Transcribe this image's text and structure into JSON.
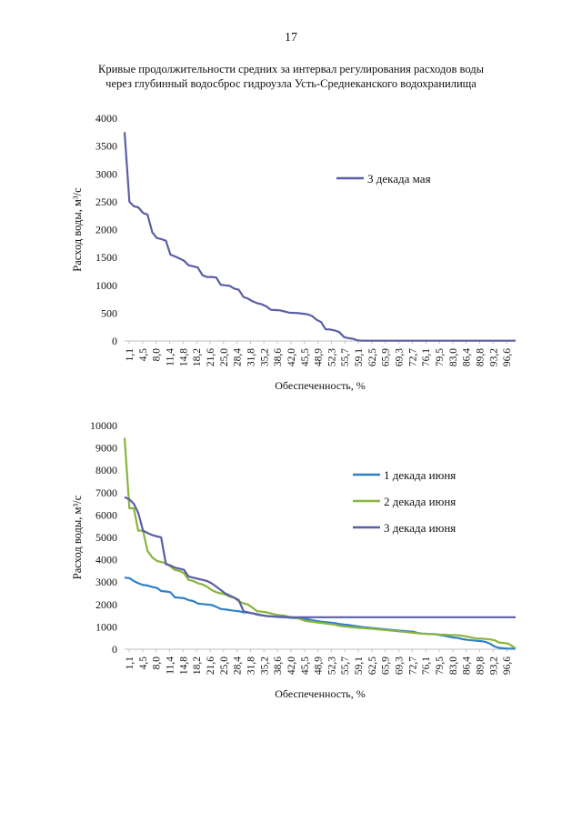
{
  "page": {
    "number": "17",
    "title_line1": "Кривые продолжительности средних за интервал регулирования расходов воды",
    "title_line2": "через глубинный водосброс гидроузла Усть-Среднеканского водохранилища"
  },
  "colors": {
    "may_d3": "#5b5ea6",
    "june_d1": "#2f7fc8",
    "june_d2": "#8ab43c",
    "june_d3": "#5b5ea6"
  },
  "chart_data": [
    {
      "type": "line",
      "title": "",
      "xlabel": "Обеспеченность, %",
      "ylabel": "Расход воды, м³/с",
      "ylim": [
        0,
        4000
      ],
      "yticks": [
        "0",
        "500",
        "1000",
        "1500",
        "2000",
        "2500",
        "3000",
        "3500",
        "4000"
      ],
      "xlim": [
        1.1,
        98.4
      ],
      "xtick_labels": [
        "1,1",
        "4,5",
        "8,0",
        "11,4",
        "14,8",
        "18,2",
        "21,6",
        "25,0",
        "28,4",
        "31,8",
        "35,2",
        "38,6",
        "42,0",
        "45,5",
        "48,9",
        "52,3",
        "55,7",
        "59,1",
        "62,5",
        "65,9",
        "69,3",
        "72,7",
        "76,1",
        "79,5",
        "83,0",
        "86,4",
        "89,8",
        "93,2",
        "96,6"
      ],
      "legend_position": "right",
      "series": [
        {
          "name": "3 декада мая",
          "color": "#5b5ea6",
          "x": [
            1.1,
            2.3,
            3.4,
            4.5,
            5.7,
            6.8,
            8.0,
            9.1,
            10.2,
            11.4,
            12.5,
            13.6,
            14.8,
            15.9,
            17.0,
            18.2,
            19.3,
            20.5,
            21.6,
            22.7,
            23.9,
            25.0,
            26.1,
            27.3,
            28.4,
            29.5,
            30.7,
            31.8,
            33.0,
            34.1,
            35.2,
            36.4,
            37.5,
            38.6,
            39.8,
            40.9,
            42.0,
            43.2,
            44.3,
            45.5,
            46.6,
            47.7,
            48.9,
            50.0,
            51.1,
            52.3,
            53.4,
            54.5,
            55.7,
            56.8,
            58.0,
            59.1,
            60.2,
            61.4,
            62.5,
            70.0,
            80.0,
            90.0,
            98.4
          ],
          "values": [
            3750,
            2500,
            2420,
            2400,
            2300,
            2270,
            1950,
            1850,
            1830,
            1800,
            1550,
            1520,
            1480,
            1440,
            1360,
            1340,
            1320,
            1180,
            1150,
            1150,
            1140,
            1010,
            1000,
            990,
            940,
            920,
            790,
            760,
            710,
            680,
            660,
            620,
            560,
            555,
            550,
            530,
            510,
            505,
            500,
            490,
            480,
            450,
            380,
            340,
            210,
            205,
            190,
            160,
            70,
            50,
            40,
            10,
            5,
            5,
            5,
            5,
            5,
            5,
            5
          ]
        }
      ]
    },
    {
      "type": "line",
      "title": "",
      "xlabel": "Обеспеченность, %",
      "ylabel": "Расход воды, м³/с",
      "ylim": [
        0,
        10000
      ],
      "yticks": [
        "0",
        "1000",
        "2000",
        "3000",
        "4000",
        "5000",
        "6000",
        "7000",
        "8000",
        "9000",
        "10000"
      ],
      "xlim": [
        1.1,
        98.4
      ],
      "xtick_labels": [
        "1,1",
        "4,5",
        "8,0",
        "11,4",
        "14,8",
        "18,2",
        "21,6",
        "25,0",
        "28,4",
        "31,8",
        "35,2",
        "38,6",
        "42,0",
        "45,5",
        "48,9",
        "52,3",
        "55,7",
        "59,1",
        "62,5",
        "65,9",
        "69,3",
        "72,7",
        "76,1",
        "79,5",
        "83,0",
        "86,4",
        "89,8",
        "93,2",
        "96,6"
      ],
      "legend_position": "right",
      "series": [
        {
          "name": "1 декада июня",
          "color": "#2f7fc8",
          "x": [
            1.1,
            2.3,
            3.4,
            4.5,
            5.7,
            6.8,
            8.0,
            9.1,
            10.2,
            11.4,
            12.5,
            13.6,
            14.8,
            15.9,
            17.0,
            18.2,
            19.3,
            20.5,
            21.6,
            22.7,
            23.9,
            25.0,
            26.1,
            27.3,
            28.4,
            29.5,
            30.7,
            31.8,
            33.0,
            34.1,
            35.2,
            36.4,
            37.5,
            38.6,
            39.8,
            40.9,
            42.0,
            43.2,
            44.3,
            45.5,
            46.6,
            47.7,
            48.9,
            50.0,
            51.1,
            52.3,
            53.4,
            54.5,
            55.7,
            56.8,
            58.0,
            59.1,
            60.2,
            61.4,
            62.5,
            63.6,
            64.8,
            65.9,
            67.0,
            68.2,
            69.3,
            70.5,
            71.6,
            72.7,
            73.9,
            75.0,
            76.1,
            77.3,
            78.4,
            79.5,
            80.7,
            81.8,
            83.0,
            84.1,
            85.2,
            86.4,
            87.5,
            88.6,
            89.8,
            90.9,
            92.0,
            93.2,
            94.3,
            95.5,
            96.6,
            97.7,
            98.4
          ],
          "values": [
            3200,
            3180,
            3050,
            2950,
            2870,
            2850,
            2780,
            2750,
            2600,
            2580,
            2550,
            2320,
            2300,
            2280,
            2200,
            2150,
            2050,
            2020,
            2000,
            1980,
            1900,
            1800,
            1780,
            1750,
            1720,
            1700,
            1650,
            1640,
            1600,
            1570,
            1520,
            1490,
            1470,
            1460,
            1440,
            1430,
            1420,
            1400,
            1380,
            1360,
            1340,
            1300,
            1260,
            1230,
            1210,
            1190,
            1170,
            1130,
            1100,
            1080,
            1050,
            1020,
            990,
            970,
            950,
            930,
            910,
            890,
            870,
            850,
            830,
            820,
            800,
            790,
            730,
            700,
            690,
            680,
            670,
            640,
            600,
            560,
            520,
            500,
            450,
            420,
            400,
            380,
            360,
            330,
            250,
            120,
            60,
            40,
            30,
            25,
            20
          ]
        },
        {
          "name": "2 декада июня",
          "color": "#8ab43c",
          "x": [
            1.1,
            2.3,
            3.4,
            4.5,
            5.7,
            6.8,
            8.0,
            9.1,
            10.2,
            11.4,
            12.5,
            13.6,
            14.8,
            15.9,
            17.0,
            18.2,
            19.3,
            20.5,
            21.6,
            22.7,
            23.9,
            25.0,
            26.1,
            27.3,
            28.4,
            29.5,
            30.7,
            31.8,
            33.0,
            34.1,
            35.2,
            36.4,
            37.5,
            38.6,
            39.8,
            40.9,
            42.0,
            43.2,
            44.3,
            45.5,
            46.6,
            47.7,
            48.9,
            50.0,
            51.1,
            52.3,
            53.4,
            54.5,
            55.7,
            56.8,
            58.0,
            59.1,
            60.2,
            61.4,
            62.5,
            63.6,
            64.8,
            65.9,
            67.0,
            68.2,
            69.3,
            70.5,
            71.6,
            72.7,
            73.9,
            75.0,
            76.1,
            77.3,
            78.4,
            79.5,
            80.7,
            81.8,
            83.0,
            84.1,
            85.2,
            86.4,
            87.5,
            88.6,
            89.8,
            90.9,
            92.0,
            93.2,
            94.3,
            95.5,
            96.6,
            97.7,
            98.4
          ],
          "values": [
            9450,
            6300,
            6300,
            5300,
            5300,
            4400,
            4100,
            3950,
            3900,
            3850,
            3700,
            3550,
            3500,
            3400,
            3100,
            3050,
            2950,
            2900,
            2800,
            2650,
            2550,
            2500,
            2450,
            2350,
            2300,
            2150,
            2050,
            2000,
            1850,
            1700,
            1680,
            1650,
            1600,
            1550,
            1520,
            1500,
            1450,
            1420,
            1380,
            1300,
            1250,
            1230,
            1200,
            1180,
            1150,
            1120,
            1100,
            1050,
            1020,
            1000,
            980,
            960,
            950,
            930,
            920,
            900,
            880,
            860,
            840,
            820,
            800,
            780,
            760,
            740,
            720,
            700,
            690,
            680,
            670,
            660,
            650,
            640,
            630,
            620,
            600,
            560,
            520,
            480,
            470,
            460,
            440,
            400,
            300,
            280,
            250,
            120,
            40
          ]
        },
        {
          "name": "3 декада июня",
          "color": "#5b5ea6",
          "x": [
            1.1,
            2.3,
            3.4,
            4.5,
            5.7,
            6.8,
            8.0,
            9.1,
            10.2,
            11.4,
            12.5,
            13.6,
            14.8,
            15.9,
            17.0,
            18.2,
            19.3,
            20.5,
            21.6,
            22.7,
            23.9,
            25.0,
            26.1,
            27.3,
            28.4,
            29.5,
            30.7,
            31.8,
            33.0,
            34.1,
            35.2,
            36.4,
            37.5,
            38.6,
            39.8,
            40.9,
            42.0,
            50.0,
            60.0,
            70.0,
            80.0,
            90.0,
            98.4
          ],
          "values": [
            6800,
            6700,
            6500,
            6100,
            5300,
            5200,
            5100,
            5050,
            5000,
            3800,
            3750,
            3650,
            3600,
            3550,
            3250,
            3200,
            3150,
            3100,
            3050,
            2950,
            2800,
            2650,
            2500,
            2400,
            2300,
            2200,
            1700,
            1650,
            1600,
            1550,
            1520,
            1480,
            1470,
            1460,
            1450,
            1440,
            1430,
            1430,
            1430,
            1430,
            1430,
            1430,
            1430
          ]
        }
      ]
    }
  ]
}
